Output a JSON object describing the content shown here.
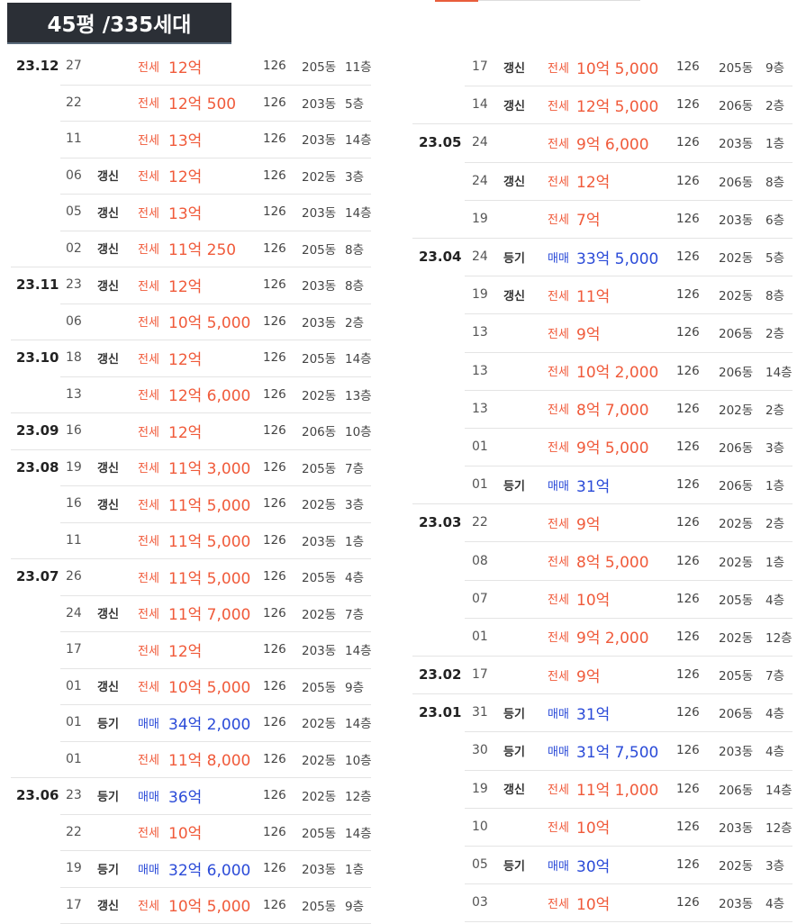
{
  "header": {
    "title": "45평 /335세대"
  },
  "left": [
    {
      "month": "23.12",
      "day": "27",
      "tag": "",
      "kind": "전세",
      "price": "12억",
      "area": "126",
      "dong": "205동",
      "floor": "11층"
    },
    {
      "month": "",
      "day": "22",
      "tag": "",
      "kind": "전세",
      "price": "12억 500",
      "area": "126",
      "dong": "203동",
      "floor": "5층"
    },
    {
      "month": "",
      "day": "11",
      "tag": "",
      "kind": "전세",
      "price": "13억",
      "area": "126",
      "dong": "203동",
      "floor": "14층"
    },
    {
      "month": "",
      "day": "06",
      "tag": "갱신",
      "kind": "전세",
      "price": "12억",
      "area": "126",
      "dong": "202동",
      "floor": "3층"
    },
    {
      "month": "",
      "day": "05",
      "tag": "갱신",
      "kind": "전세",
      "price": "13억",
      "area": "126",
      "dong": "203동",
      "floor": "14층"
    },
    {
      "month": "",
      "day": "02",
      "tag": "갱신",
      "kind": "전세",
      "price": "11억 250",
      "area": "126",
      "dong": "205동",
      "floor": "8층"
    },
    {
      "month": "23.11",
      "day": "23",
      "tag": "갱신",
      "kind": "전세",
      "price": "12억",
      "area": "126",
      "dong": "203동",
      "floor": "8층"
    },
    {
      "month": "",
      "day": "06",
      "tag": "",
      "kind": "전세",
      "price": "10억 5,000",
      "area": "126",
      "dong": "203동",
      "floor": "2층"
    },
    {
      "month": "23.10",
      "day": "18",
      "tag": "갱신",
      "kind": "전세",
      "price": "12억",
      "area": "126",
      "dong": "205동",
      "floor": "14층"
    },
    {
      "month": "",
      "day": "13",
      "tag": "",
      "kind": "전세",
      "price": "12억 6,000",
      "area": "126",
      "dong": "202동",
      "floor": "13층"
    },
    {
      "month": "23.09",
      "day": "16",
      "tag": "",
      "kind": "전세",
      "price": "12억",
      "area": "126",
      "dong": "206동",
      "floor": "10층"
    },
    {
      "month": "23.08",
      "day": "19",
      "tag": "갱신",
      "kind": "전세",
      "price": "11억 3,000",
      "area": "126",
      "dong": "205동",
      "floor": "7층"
    },
    {
      "month": "",
      "day": "16",
      "tag": "갱신",
      "kind": "전세",
      "price": "11억 5,000",
      "area": "126",
      "dong": "202동",
      "floor": "3층"
    },
    {
      "month": "",
      "day": "11",
      "tag": "",
      "kind": "전세",
      "price": "11억 5,000",
      "area": "126",
      "dong": "203동",
      "floor": "1층"
    },
    {
      "month": "23.07",
      "day": "26",
      "tag": "",
      "kind": "전세",
      "price": "11억 5,000",
      "area": "126",
      "dong": "205동",
      "floor": "4층"
    },
    {
      "month": "",
      "day": "24",
      "tag": "갱신",
      "kind": "전세",
      "price": "11억 7,000",
      "area": "126",
      "dong": "202동",
      "floor": "7층"
    },
    {
      "month": "",
      "day": "17",
      "tag": "",
      "kind": "전세",
      "price": "12억",
      "area": "126",
      "dong": "203동",
      "floor": "14층"
    },
    {
      "month": "",
      "day": "01",
      "tag": "갱신",
      "kind": "전세",
      "price": "10억 5,000",
      "area": "126",
      "dong": "205동",
      "floor": "9층"
    },
    {
      "month": "",
      "day": "01",
      "tag": "등기",
      "kind": "매매",
      "price": "34억 2,000",
      "area": "126",
      "dong": "202동",
      "floor": "14층"
    },
    {
      "month": "",
      "day": "01",
      "tag": "",
      "kind": "전세",
      "price": "11억 8,000",
      "area": "126",
      "dong": "202동",
      "floor": "10층"
    },
    {
      "month": "23.06",
      "day": "23",
      "tag": "등기",
      "kind": "매매",
      "price": "36억",
      "area": "126",
      "dong": "202동",
      "floor": "12층"
    },
    {
      "month": "",
      "day": "22",
      "tag": "",
      "kind": "전세",
      "price": "10억",
      "area": "126",
      "dong": "205동",
      "floor": "14층"
    },
    {
      "month": "",
      "day": "19",
      "tag": "등기",
      "kind": "매매",
      "price": "32억 6,000",
      "area": "126",
      "dong": "203동",
      "floor": "1층"
    },
    {
      "month": "",
      "day": "17",
      "tag": "갱신",
      "kind": "전세",
      "price": "10억 5,000",
      "area": "126",
      "dong": "205동",
      "floor": "9층"
    }
  ],
  "right": [
    {
      "month": "",
      "day": "17",
      "tag": "갱신",
      "kind": "전세",
      "price": "10억 5,000",
      "area": "126",
      "dong": "205동",
      "floor": "9층"
    },
    {
      "month": "",
      "day": "14",
      "tag": "갱신",
      "kind": "전세",
      "price": "12억 5,000",
      "area": "126",
      "dong": "206동",
      "floor": "2층"
    },
    {
      "month": "23.05",
      "day": "24",
      "tag": "",
      "kind": "전세",
      "price": "9억 6,000",
      "area": "126",
      "dong": "203동",
      "floor": "1층"
    },
    {
      "month": "",
      "day": "24",
      "tag": "갱신",
      "kind": "전세",
      "price": "12억",
      "area": "126",
      "dong": "206동",
      "floor": "8층"
    },
    {
      "month": "",
      "day": "19",
      "tag": "",
      "kind": "전세",
      "price": "7억",
      "area": "126",
      "dong": "203동",
      "floor": "6층"
    },
    {
      "month": "23.04",
      "day": "24",
      "tag": "등기",
      "kind": "매매",
      "price": "33억 5,000",
      "area": "126",
      "dong": "202동",
      "floor": "5층"
    },
    {
      "month": "",
      "day": "19",
      "tag": "갱신",
      "kind": "전세",
      "price": "11억",
      "area": "126",
      "dong": "202동",
      "floor": "8층"
    },
    {
      "month": "",
      "day": "13",
      "tag": "",
      "kind": "전세",
      "price": "9억",
      "area": "126",
      "dong": "206동",
      "floor": "2층"
    },
    {
      "month": "",
      "day": "13",
      "tag": "",
      "kind": "전세",
      "price": "10억 2,000",
      "area": "126",
      "dong": "206동",
      "floor": "14층"
    },
    {
      "month": "",
      "day": "13",
      "tag": "",
      "kind": "전세",
      "price": "8억 7,000",
      "area": "126",
      "dong": "202동",
      "floor": "2층"
    },
    {
      "month": "",
      "day": "01",
      "tag": "",
      "kind": "전세",
      "price": "9억 5,000",
      "area": "126",
      "dong": "206동",
      "floor": "3층"
    },
    {
      "month": "",
      "day": "01",
      "tag": "등기",
      "kind": "매매",
      "price": "31억",
      "area": "126",
      "dong": "206동",
      "floor": "1층"
    },
    {
      "month": "23.03",
      "day": "22",
      "tag": "",
      "kind": "전세",
      "price": "9억",
      "area": "126",
      "dong": "202동",
      "floor": "2층"
    },
    {
      "month": "",
      "day": "08",
      "tag": "",
      "kind": "전세",
      "price": "8억 5,000",
      "area": "126",
      "dong": "202동",
      "floor": "1층"
    },
    {
      "month": "",
      "day": "07",
      "tag": "",
      "kind": "전세",
      "price": "10억",
      "area": "126",
      "dong": "205동",
      "floor": "4층"
    },
    {
      "month": "",
      "day": "01",
      "tag": "",
      "kind": "전세",
      "price": "9억 2,000",
      "area": "126",
      "dong": "202동",
      "floor": "12층"
    },
    {
      "month": "23.02",
      "day": "17",
      "tag": "",
      "kind": "전세",
      "price": "9억",
      "area": "126",
      "dong": "205동",
      "floor": "7층"
    },
    {
      "month": "23.01",
      "day": "31",
      "tag": "등기",
      "kind": "매매",
      "price": "31억",
      "area": "126",
      "dong": "206동",
      "floor": "4층"
    },
    {
      "month": "",
      "day": "30",
      "tag": "등기",
      "kind": "매매",
      "price": "31억 7,500",
      "area": "126",
      "dong": "203동",
      "floor": "4층"
    },
    {
      "month": "",
      "day": "19",
      "tag": "갱신",
      "kind": "전세",
      "price": "11억 1,000",
      "area": "126",
      "dong": "206동",
      "floor": "14층"
    },
    {
      "month": "",
      "day": "10",
      "tag": "",
      "kind": "전세",
      "price": "10억",
      "area": "126",
      "dong": "203동",
      "floor": "12층"
    },
    {
      "month": "",
      "day": "05",
      "tag": "등기",
      "kind": "매매",
      "price": "30억",
      "area": "126",
      "dong": "202동",
      "floor": "3층"
    },
    {
      "month": "",
      "day": "03",
      "tag": "",
      "kind": "전세",
      "price": "10억",
      "area": "126",
      "dong": "203동",
      "floor": "4층"
    }
  ],
  "colors": {
    "jeonse": "#f05a3a",
    "maemae": "#2b4bd8",
    "title_bg": "#2b2f36"
  }
}
